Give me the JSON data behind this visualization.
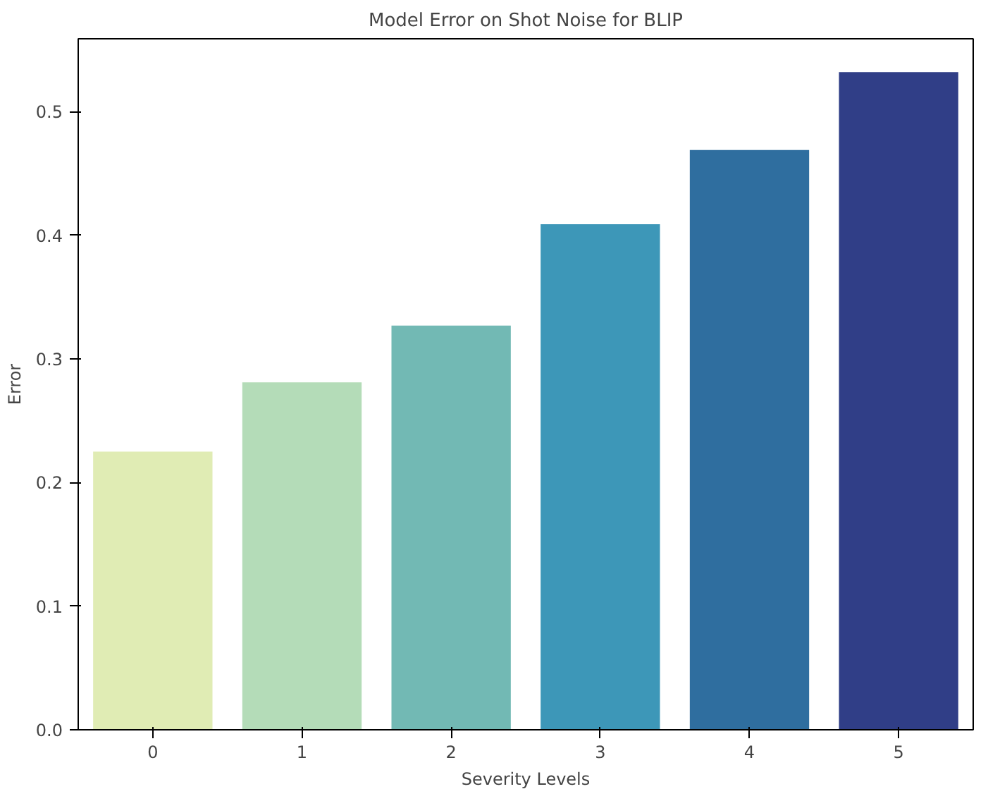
{
  "chart_data": {
    "type": "bar",
    "title": "Model Error on Shot Noise for BLIP",
    "xlabel": "Severity Levels",
    "ylabel": "Error",
    "categories": [
      "0",
      "1",
      "2",
      "3",
      "4",
      "5"
    ],
    "values": [
      0.225,
      0.281,
      0.327,
      0.409,
      0.469,
      0.532
    ],
    "colors": [
      "#e0ecb4",
      "#b4dcb8",
      "#72b9b4",
      "#3d97b8",
      "#2f6e9f",
      "#303e87"
    ],
    "ylim": [
      0,
      0.559
    ],
    "yticks": [
      {
        "value": 0,
        "label": "0.0"
      },
      0.1,
      0.2,
      0.3,
      0.4,
      0.5
    ],
    "grid": false
  }
}
